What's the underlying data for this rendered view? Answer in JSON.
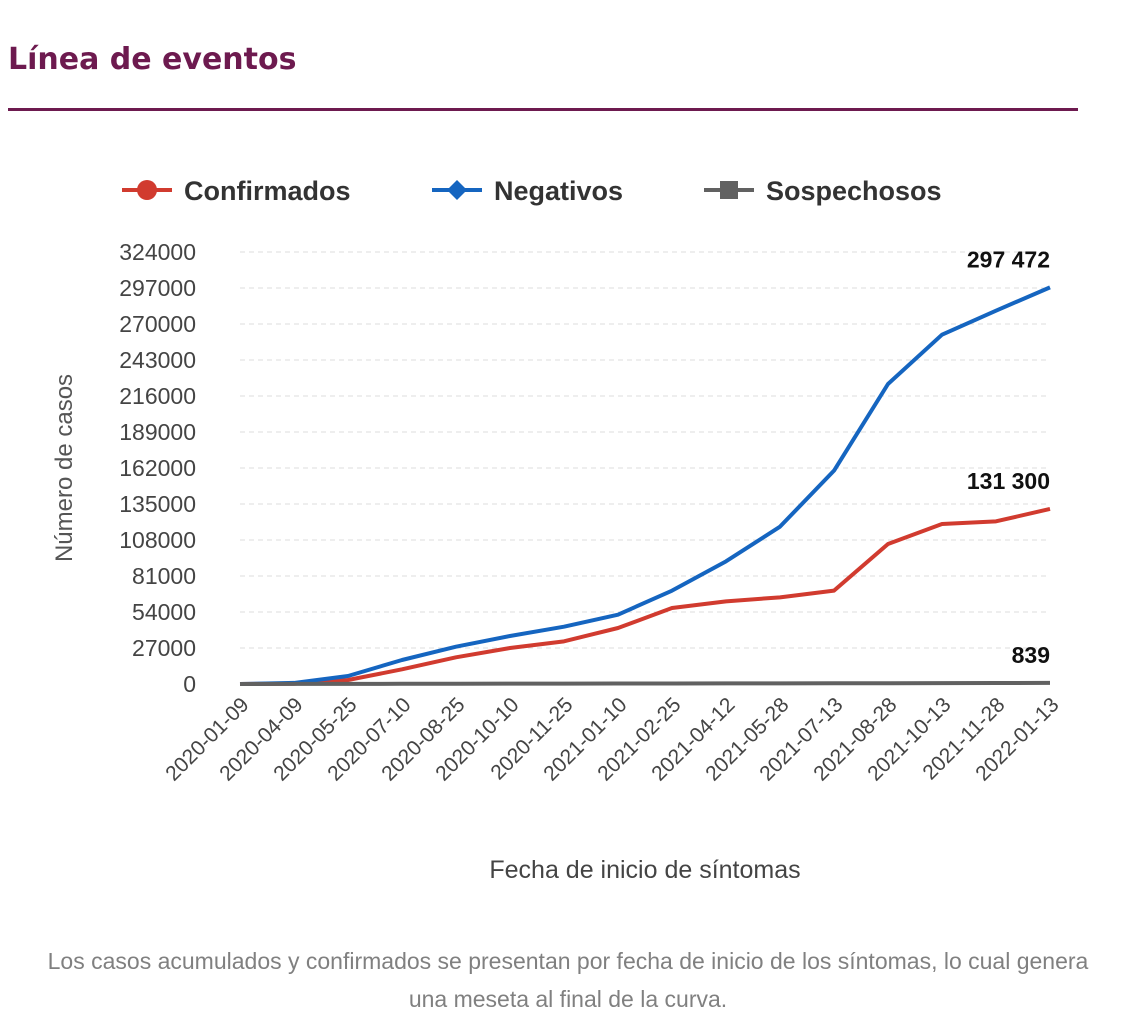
{
  "page_title": "Línea de eventos",
  "chart_data": {
    "type": "line",
    "y_label": "Número de casos",
    "x_label": "Fecha de inicio de síntomas",
    "x": [
      "2020-01-09",
      "2020-04-09",
      "2020-05-25",
      "2020-07-10",
      "2020-08-25",
      "2020-10-10",
      "2020-11-25",
      "2021-01-10",
      "2021-02-25",
      "2021-04-12",
      "2021-05-28",
      "2021-07-13",
      "2021-08-28",
      "2021-10-13",
      "2021-11-28",
      "2022-01-13"
    ],
    "series": [
      {
        "name": "Confirmados",
        "color": "#d13b2f",
        "marker": "circle",
        "values": [
          0,
          200,
          3000,
          11000,
          20000,
          27000,
          32000,
          42000,
          57000,
          62000,
          65000,
          70000,
          105000,
          120000,
          122000,
          131300
        ],
        "value_labels": [
          null,
          null,
          null,
          null,
          null,
          null,
          null,
          null,
          null,
          null,
          null,
          null,
          null,
          null,
          null,
          "131 300"
        ]
      },
      {
        "name": "Negativos",
        "color": "#1565c0",
        "marker": "diamond",
        "values": [
          0,
          800,
          6000,
          18000,
          28000,
          36000,
          43000,
          52000,
          70000,
          92000,
          118000,
          160000,
          225000,
          262000,
          280000,
          297472
        ],
        "value_labels": [
          null,
          null,
          null,
          null,
          null,
          null,
          null,
          null,
          null,
          null,
          null,
          null,
          null,
          null,
          null,
          "297 472"
        ]
      },
      {
        "name": "Sospechosos",
        "color": "#616161",
        "marker": "square",
        "values": [
          0,
          50,
          100,
          150,
          200,
          250,
          300,
          350,
          400,
          450,
          500,
          550,
          600,
          650,
          750,
          839
        ],
        "value_labels": [
          null,
          null,
          null,
          null,
          null,
          null,
          null,
          null,
          null,
          null,
          null,
          null,
          null,
          null,
          null,
          "839"
        ]
      }
    ],
    "ylim": [
      0,
      324000
    ],
    "yticks": [
      0,
      27000,
      54000,
      81000,
      108000,
      135000,
      162000,
      189000,
      216000,
      243000,
      270000,
      297000,
      324000
    ],
    "grid": true,
    "legend": "top"
  },
  "caption": "Los casos acumulados y confirmados se presentan por fecha de inicio de los síntomas, lo cual genera una meseta al final de la curva."
}
